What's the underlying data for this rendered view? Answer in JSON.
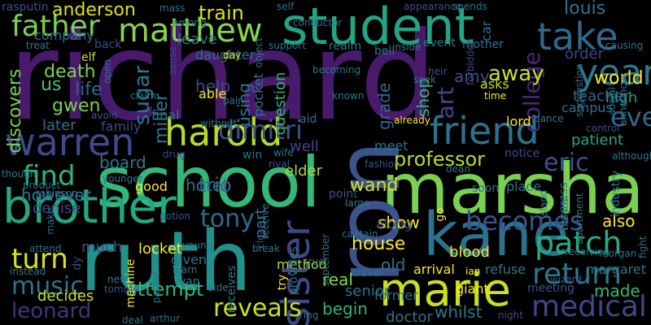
{
  "words": [
    {
      "text": "richard",
      "color": "#481a6c"
    },
    {
      "text": "school",
      "color": "#35b779"
    },
    {
      "text": "ruth",
      "color": "#21918c"
    },
    {
      "text": "marshall",
      "color": "#7ad151"
    },
    {
      "text": "ron",
      "color": "#3b528b"
    },
    {
      "text": "kane",
      "color": "#2c728e"
    },
    {
      "text": "student",
      "color": "#21a585"
    },
    {
      "text": "marie",
      "color": "#c8e020"
    },
    {
      "text": "brother",
      "color": "#22a884"
    },
    {
      "text": "take",
      "color": "#31688e"
    },
    {
      "text": "friend",
      "color": "#2c728e"
    },
    {
      "text": "harold",
      "color": "#b5de2b"
    },
    {
      "text": "warren",
      "color": "#3e4a89"
    },
    {
      "text": "sister",
      "color": "#3e4989"
    },
    {
      "text": "year",
      "color": "#2a788e"
    },
    {
      "text": "matthew",
      "color": "#86d549"
    },
    {
      "text": "patch",
      "color": "#26ad81"
    },
    {
      "text": "return",
      "color": "#2a788e"
    },
    {
      "text": "medical",
      "color": "#3f4788"
    },
    {
      "text": "becomes",
      "color": "#3b528b"
    },
    {
      "text": "father",
      "color": "#7ad151"
    },
    {
      "text": "reveals",
      "color": "#c8e020"
    },
    {
      "text": "dimitri",
      "color": "#3b528b"
    },
    {
      "text": "find",
      "color": "#2fb47c"
    },
    {
      "text": "turn",
      "color": "#d8e219"
    },
    {
      "text": "tony",
      "color": "#31688e"
    },
    {
      "text": "music",
      "color": "#2c728e"
    },
    {
      "text": "leonard",
      "color": "#46327e"
    },
    {
      "text": "eve",
      "color": "#31688e"
    },
    {
      "text": "eric",
      "color": "#3b528b"
    },
    {
      "text": "college",
      "color": "#482878"
    },
    {
      "text": "art",
      "color": "#3f4788"
    },
    {
      "text": "professor",
      "color": "#b5de2b"
    },
    {
      "text": "sugar",
      "color": "#2a788e"
    },
    {
      "text": "miller",
      "color": "#2a788e"
    },
    {
      "text": "wand",
      "color": "#d8e219"
    },
    {
      "text": "attempt",
      "color": "#2fb47c"
    },
    {
      "text": "anderson",
      "color": "#d8e219"
    },
    {
      "text": "train",
      "color": "#d8e219"
    },
    {
      "text": "away",
      "color": "#c8e020"
    },
    {
      "text": "louis",
      "color": "#2a788e"
    },
    {
      "text": "order",
      "color": "#404688"
    },
    {
      "text": "world",
      "color": "#fde725"
    },
    {
      "text": "high",
      "color": "#1f9e89"
    },
    {
      "text": "trio",
      "color": "#31688e"
    },
    {
      "text": "hotel",
      "color": "#2c728e"
    },
    {
      "text": "board",
      "color": "#2a788e"
    },
    {
      "text": "however",
      "color": "#2a788e"
    },
    {
      "text": "brother2",
      "color": "#22a884"
    },
    {
      "text": "house",
      "color": "#fde725"
    },
    {
      "text": "real",
      "color": "#86d549"
    },
    {
      "text": "begin",
      "color": "#2fb47c"
    },
    {
      "text": "old",
      "color": "#2c728e"
    },
    {
      "text": "show",
      "color": "#fde725"
    },
    {
      "text": "also",
      "color": "#fde725"
    },
    {
      "text": "made",
      "color": "#35b779"
    },
    {
      "text": "patient",
      "color": "#22a884"
    },
    {
      "text": "teacher",
      "color": "#31688e"
    },
    {
      "text": "shop",
      "color": "#2fb47c"
    },
    {
      "text": "grade",
      "color": "#31688e"
    },
    {
      "text": "amy",
      "color": "#3b528b"
    },
    {
      "text": "death",
      "color": "#7ad151"
    },
    {
      "text": "life",
      "color": "#31688e"
    },
    {
      "text": "gwen",
      "color": "#7ad151"
    },
    {
      "text": "discovers",
      "color": "#7ad151"
    },
    {
      "text": "us",
      "color": "#4ac16d"
    },
    {
      "text": "later",
      "color": "#2c728e"
    },
    {
      "text": "help",
      "color": "#3e4989"
    },
    {
      "text": "using",
      "color": "#2a788e"
    },
    {
      "text": "question",
      "color": "#35b779"
    },
    {
      "text": "part",
      "color": "#2a788e"
    },
    {
      "text": "well",
      "color": "#3e4a89"
    },
    {
      "text": "elder",
      "color": "#a2da37"
    },
    {
      "text": "decides",
      "color": "#c8e020"
    },
    {
      "text": "locket",
      "color": "#fde725"
    },
    {
      "text": "whilst",
      "color": "#2a788e"
    },
    {
      "text": "doctor",
      "color": "#2c728e"
    },
    {
      "text": "senior",
      "color": "#2c728e"
    },
    {
      "text": "blood",
      "color": "#fde725"
    },
    {
      "text": "campus",
      "color": "#2c728e"
    },
    {
      "text": "asks",
      "color": "#b5de2b"
    },
    {
      "text": "leave",
      "color": "#2c728e"
    },
    {
      "text": "company",
      "color": "#2c728e"
    },
    {
      "text": "daughter",
      "color": "#2c728e"
    },
    {
      "text": "able",
      "color": "#fde725"
    },
    {
      "text": "pocket",
      "color": "#2c728e"
    },
    {
      "text": "hotel2",
      "color": "#2c728e"
    },
    {
      "text": "final",
      "color": "#2c728e"
    },
    {
      "text": "family",
      "color": "#3e4989"
    },
    {
      "text": "much",
      "color": "#3b528b"
    },
    {
      "text": "given",
      "color": "#2a788e"
    },
    {
      "text": "along",
      "color": "#3b528b"
    },
    {
      "text": "arrival",
      "color": "#fde725"
    },
    {
      "text": "former",
      "color": "#2c728e"
    },
    {
      "text": "giant",
      "color": "#fde725"
    },
    {
      "text": "method",
      "color": "#b5de2b"
    },
    {
      "text": "refuse",
      "color": "#2a788e"
    },
    {
      "text": "margaret",
      "color": "#2a788e"
    },
    {
      "text": "meeting",
      "color": "#3b528b"
    },
    {
      "text": "lord",
      "color": "#fde725"
    },
    {
      "text": "notice",
      "color": "#3e4989"
    },
    {
      "text": "place",
      "color": "#2a788e"
    },
    {
      "text": "soon",
      "color": "#2c728e"
    },
    {
      "text": "point",
      "color": "#3b528b"
    },
    {
      "text": "meet",
      "color": "#2c728e"
    },
    {
      "text": "denise",
      "color": "#3e4a89"
    },
    {
      "text": "good",
      "color": "#fde725"
    },
    {
      "text": "mother",
      "color": "#2a788e"
    },
    {
      "text": "bell",
      "color": "#2a788e"
    },
    {
      "text": "event",
      "color": "#2a788e"
    },
    {
      "text": "elf",
      "color": "#c8e020"
    },
    {
      "text": "back",
      "color": "#3e4989"
    },
    {
      "text": "day",
      "color": "#fde725"
    },
    {
      "text": "self",
      "color": "#2c728e"
    },
    {
      "text": "support",
      "color": "#2a788e"
    },
    {
      "text": "realm",
      "color": "#2a788e"
    },
    {
      "text": "inside",
      "color": "#2c728e"
    },
    {
      "text": "mass",
      "color": "#2c728e"
    },
    {
      "text": "among",
      "color": "#2a788e"
    },
    {
      "text": "conductor",
      "color": "#2c728e"
    },
    {
      "text": "appearance",
      "color": "#3b528b"
    },
    {
      "text": "spends",
      "color": "#2a788e"
    },
    {
      "text": "rasputin",
      "color": "#3b528b"
    },
    {
      "text": "treat",
      "color": "#2a788e"
    },
    {
      "text": "car",
      "color": "#2c728e"
    },
    {
      "text": "causing",
      "color": "#2a788e"
    },
    {
      "text": "becoming",
      "color": "#2a788e"
    },
    {
      "text": "known",
      "color": "#2a788e"
    },
    {
      "text": "without",
      "color": "#2a788e"
    },
    {
      "text": "aid",
      "color": "#2c728e"
    },
    {
      "text": "pain",
      "color": "#2a788e"
    },
    {
      "text": "claim",
      "color": "#2a788e"
    },
    {
      "text": "avoid",
      "color": "#3b528b"
    },
    {
      "text": "open",
      "color": "#2c728e"
    },
    {
      "text": "time",
      "color": "#fde725"
    },
    {
      "text": "dance",
      "color": "#2a788e"
    },
    {
      "text": "control",
      "color": "#3e4989"
    },
    {
      "text": "suggestion",
      "color": "#2c728e"
    },
    {
      "text": "social",
      "color": "#2a788e"
    },
    {
      "text": "announces",
      "color": "#2a788e"
    },
    {
      "text": "drug",
      "color": "#3e4989"
    },
    {
      "text": "win",
      "color": "#2c728e"
    },
    {
      "text": "rival",
      "color": "#3b528b"
    },
    {
      "text": "wife",
      "color": "#2a788e"
    },
    {
      "text": "younger",
      "color": "#2a788e"
    },
    {
      "text": "product",
      "color": "#2c728e"
    },
    {
      "text": "robinson",
      "color": "#2c728e"
    },
    {
      "text": "though",
      "color": "#2a788e"
    },
    {
      "text": "potion",
      "color": "#3b528b"
    },
    {
      "text": "attend",
      "color": "#2c728e"
    },
    {
      "text": "instead",
      "color": "#2a788e"
    },
    {
      "text": "make",
      "color": "#2c728e"
    },
    {
      "text": "machine",
      "color": "#fde725"
    },
    {
      "text": "parent",
      "color": "#2a788e"
    },
    {
      "text": "new",
      "color": "#2a788e"
    },
    {
      "text": "tommy",
      "color": "#3b528b"
    },
    {
      "text": "dy",
      "color": "#3e4989"
    },
    {
      "text": "young",
      "color": "#2a788e"
    },
    {
      "text": "learn",
      "color": "#2a788e"
    },
    {
      "text": "side",
      "color": "#2c728e"
    },
    {
      "text": "van",
      "color": "#2c728e"
    },
    {
      "text": "arthur",
      "color": "#2c728e"
    },
    {
      "text": "receives",
      "color": "#2a788e"
    },
    {
      "text": "try",
      "color": "#fde725"
    },
    {
      "text": "ring",
      "color": "#2c728e"
    },
    {
      "text": "true",
      "color": "#2a788e"
    },
    {
      "text": "clear",
      "color": "#3e4989"
    },
    {
      "text": "break",
      "color": "#2a788e"
    },
    {
      "text": "provides",
      "color": "#2a788e"
    },
    {
      "text": "receive",
      "color": "#2c728e"
    },
    {
      "text": "september",
      "color": "#2a788e"
    },
    {
      "text": "captain",
      "color": "#2c728e"
    },
    {
      "text": "large",
      "color": "#2a788e"
    },
    {
      "text": "travel",
      "color": "#2a788e"
    },
    {
      "text": "ian",
      "color": "#fde725"
    },
    {
      "text": "night",
      "color": "#3e4989"
    },
    {
      "text": "island",
      "color": "#2a788e"
    },
    {
      "text": "express",
      "color": "#2c728e"
    },
    {
      "text": "apartment",
      "color": "#2a788e"
    },
    {
      "text": "mental",
      "color": "#2c728e"
    },
    {
      "text": "industry",
      "color": "#2a788e"
    },
    {
      "text": "although",
      "color": "#2a788e"
    },
    {
      "text": "morgan",
      "color": "#2c728e"
    },
    {
      "text": "receiving",
      "color": "#2a788e"
    },
    {
      "text": "wizard",
      "color": "#3b528b"
    },
    {
      "text": "fight",
      "color": "#2c728e"
    },
    {
      "text": "go",
      "color": "#fde725"
    },
    {
      "text": "seek",
      "color": "#2a788e"
    },
    {
      "text": "heir",
      "color": "#3b528b"
    },
    {
      "text": "object",
      "color": "#2c728e"
    },
    {
      "text": "fashion",
      "color": "#3b528b"
    },
    {
      "text": "dean",
      "color": "#2a788e"
    },
    {
      "text": "forbidden",
      "color": "#3e4989"
    },
    {
      "text": "already",
      "color": "#fde725"
    },
    {
      "text": "sense",
      "color": "#3e4989"
    },
    {
      "text": "deal",
      "color": "#2a788e"
    }
  ]
}
